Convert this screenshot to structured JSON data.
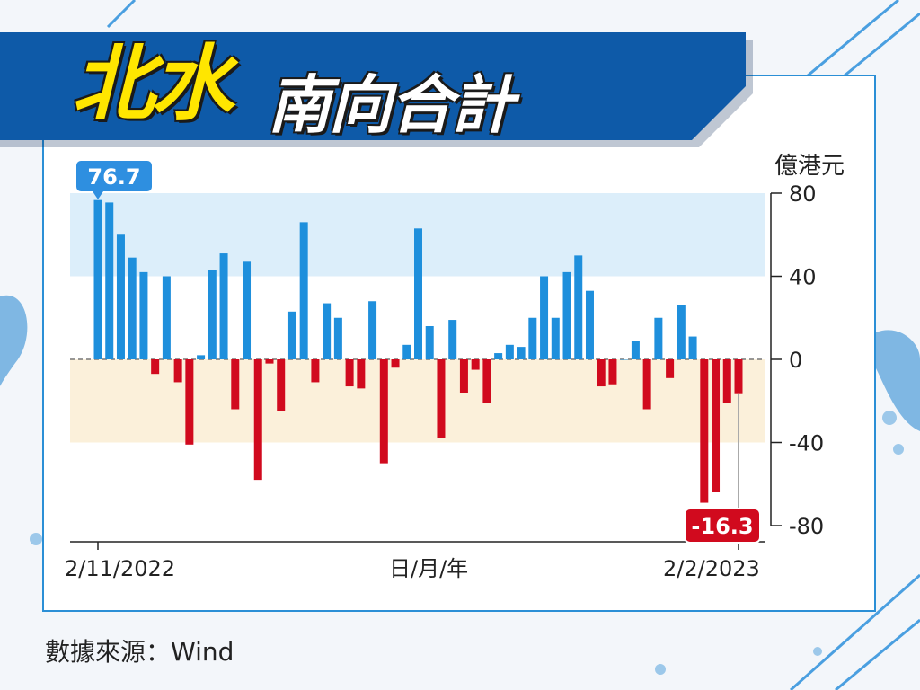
{
  "title": {
    "main": "北水",
    "sub": "南向合計"
  },
  "unit": "億港元",
  "source": "數據來源：Wind",
  "colors": {
    "positive": "#1e8fdc",
    "negative": "#d10a1e",
    "banner": "#0e5aa8",
    "band_pos": "#dceefa",
    "band_neg": "#fbf0da"
  },
  "chart_data": {
    "type": "bar",
    "ylabel": "億港元",
    "xlabel": "日/月/年",
    "ylim": [
      -88,
      83
    ],
    "yticks": [
      80,
      40,
      0,
      -40,
      -80
    ],
    "x_start_label": "2/11/2022",
    "x_end_label": "2/2/2023",
    "xlabel_middle": "日/月/年",
    "annotations": [
      {
        "label": "76.7",
        "bar_index": 0
      },
      {
        "label": "-16.3",
        "bar_index": 56
      }
    ],
    "values": [
      76.7,
      75.5,
      60.0,
      49.0,
      42.0,
      -7.0,
      40.0,
      -11.0,
      -41.0,
      2.0,
      43.0,
      51.0,
      -24.0,
      47.0,
      -58.0,
      -2.0,
      -25.0,
      23.0,
      66.0,
      -11.0,
      27.0,
      20.0,
      -13.0,
      -14.0,
      28.0,
      -50.0,
      -4.0,
      7.0,
      63.0,
      16.0,
      -38.0,
      19.0,
      -16.0,
      -5.0,
      -21.0,
      3.0,
      7.0,
      6.0,
      20.0,
      40.0,
      20.0,
      42.0,
      50.0,
      33.0,
      -13.0,
      -12.0,
      0.0,
      9.0,
      -24.0,
      20.0,
      -9.0,
      26.0,
      11.0,
      -69.0,
      -64.0,
      -21.0,
      -16.3
    ]
  }
}
